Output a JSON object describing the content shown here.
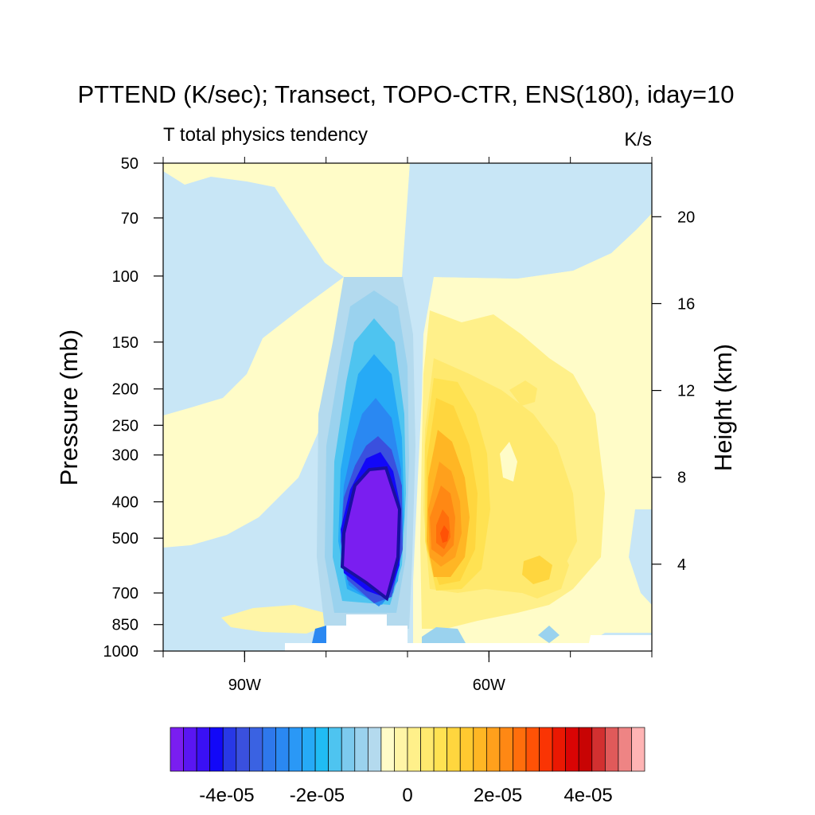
{
  "chart_data": {
    "type": "contour",
    "title": "PTTEND (K/sec); Transect, TOPO-CTR, ENS(180), iday=10",
    "subtitle_left": "T total physics tendency",
    "subtitle_right": "K/s",
    "ylabel_left": "Pressure (mb)",
    "ylabel_right": "Height (km)",
    "x_ticks": [
      {
        "value": -90,
        "label": "90W"
      },
      {
        "value": -60,
        "label": "60W"
      }
    ],
    "xlim": [
      -100,
      -40
    ],
    "y_scale": "log",
    "y_reversed": true,
    "ylim": [
      1000,
      50
    ],
    "y_ticks": [
      50,
      70,
      100,
      150,
      200,
      250,
      300,
      400,
      500,
      700,
      850,
      1000
    ],
    "y_ticks_right": [
      {
        "label": "20",
        "value": 20
      },
      {
        "label": "16",
        "value": 16
      },
      {
        "label": "12",
        "value": 12
      },
      {
        "label": "8",
        "value": 8
      },
      {
        "label": "4",
        "value": 4
      }
    ],
    "colorbar": {
      "min": -5.25e-05,
      "max": 5.25e-05,
      "interval": 2.5e-06,
      "tick_labels": [
        {
          "value": -4e-05,
          "label": "-4e-05"
        },
        {
          "value": -2e-05,
          "label": "-2e-05"
        },
        {
          "value": 0,
          "label": "0"
        },
        {
          "value": 2e-05,
          "label": "2e-05"
        },
        {
          "value": 4e-05,
          "label": "4e-05"
        }
      ],
      "colors": [
        "#7a1ef0",
        "#5a16f2",
        "#3a10f5",
        "#1208f8",
        "#2838e6",
        "#3a50de",
        "#3a62e2",
        "#2e78ec",
        "#2a88f2",
        "#2a98f6",
        "#26aaf6",
        "#20bcf4",
        "#4ec4f0",
        "#7ccaee",
        "#9ad2ee",
        "#b4daee",
        "#fffcc8",
        "#fff5a6",
        "#fff08a",
        "#ffe96e",
        "#ffe252",
        "#ffd63e",
        "#ffc930",
        "#ffb624",
        "#ffa01c",
        "#ff8814",
        "#ff6e0c",
        "#ff5206",
        "#fa3404",
        "#ea1802",
        "#da0404",
        "#c80404",
        "#d23030",
        "#e05a5a",
        "#ee8484",
        "#ffb4b4"
      ]
    },
    "field_regions": [
      {
        "name": "upper-left-positive",
        "sign": "positive",
        "level": 2.5e-06
      },
      {
        "name": "upper-right-negative",
        "sign": "negative",
        "level": -2.5e-06
      },
      {
        "name": "right-positive",
        "sign": "positive",
        "level": 2.5e-06
      },
      {
        "name": "left-negative",
        "sign": "negative",
        "level": -2.5e-06
      },
      {
        "name": "mid-left-positive",
        "sign": "positive",
        "level": 2.5e-06
      },
      {
        "name": "cooling-column",
        "sign": "negative",
        "min": -5e-05
      },
      {
        "name": "heating-column",
        "sign": "positive",
        "max": 4.25e-05
      }
    ]
  }
}
